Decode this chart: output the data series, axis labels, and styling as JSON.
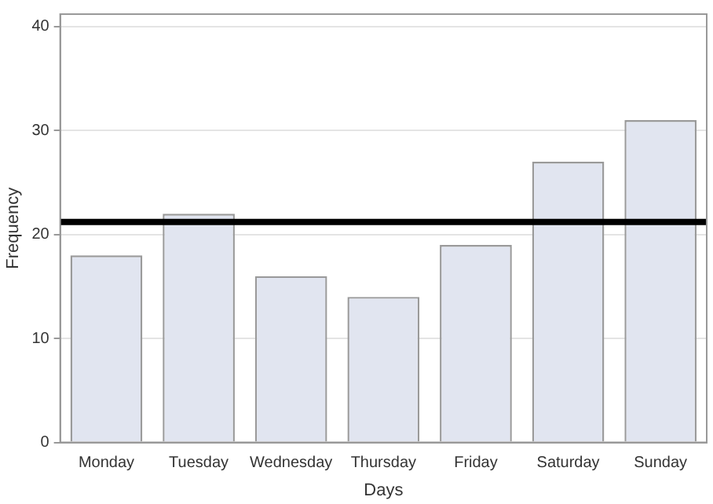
{
  "chart_data": {
    "type": "bar",
    "xlabel": "Days",
    "ylabel": "Frequency",
    "categories": [
      "Monday",
      "Tuesday",
      "Wednesday",
      "Thursday",
      "Friday",
      "Saturday",
      "Sunday"
    ],
    "values": [
      18,
      22,
      16,
      14,
      19,
      27,
      31
    ],
    "color": "#e1e5f0",
    "ylim": [
      0,
      41.2
    ],
    "yticks": [
      0,
      10,
      20,
      30,
      40
    ],
    "grid": "y",
    "legend": false,
    "ref_lines": [
      {
        "axis": "y",
        "value": 21.2,
        "color": "#000000"
      }
    ]
  }
}
